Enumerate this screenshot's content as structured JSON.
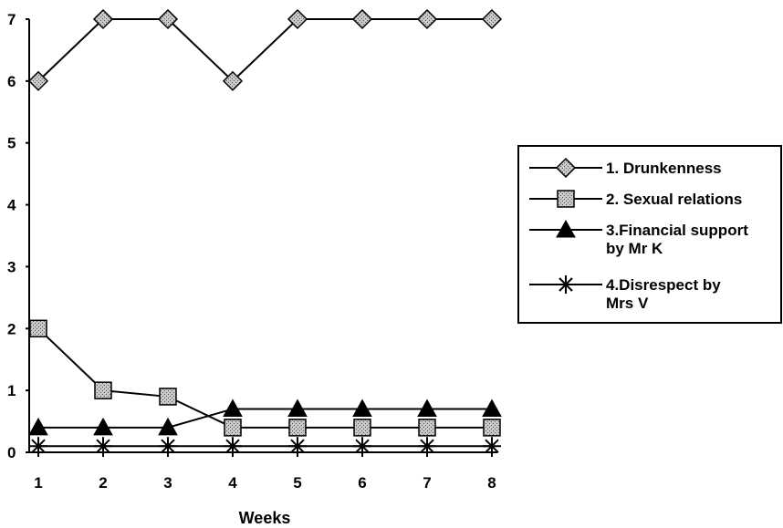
{
  "chart_data": {
    "type": "line",
    "title": "",
    "xlabel": "Weeks",
    "ylabel": "",
    "x": [
      1,
      2,
      3,
      4,
      5,
      6,
      7,
      8
    ],
    "xlim": [
      1,
      8
    ],
    "ylim": [
      0,
      7
    ],
    "yticks": [
      0,
      1,
      2,
      3,
      4,
      5,
      6,
      7
    ],
    "grid": false,
    "legend_position": "right",
    "series": [
      {
        "name": "1.  Drunkenness",
        "legend_lines": [
          "1.  Drunkenness"
        ],
        "marker": "diamond",
        "values": [
          6,
          7,
          7,
          6,
          7,
          7,
          7,
          7
        ]
      },
      {
        "name": "2.  Sexual relations",
        "legend_lines": [
          "2.  Sexual relations"
        ],
        "marker": "square",
        "values": [
          2,
          1,
          0.9,
          0.4,
          0.4,
          0.4,
          0.4,
          0.4
        ]
      },
      {
        "name": "3.Financial support by Mr K",
        "legend_lines": [
          "3.Financial support",
          "by Mr K"
        ],
        "marker": "triangle",
        "values": [
          0.4,
          0.4,
          0.4,
          0.7,
          0.7,
          0.7,
          0.7,
          0.7
        ]
      },
      {
        "name": "4.Disrespect by Mrs V",
        "legend_lines": [
          "4.Disrespect by",
          "Mrs V"
        ],
        "marker": "star",
        "values": [
          0.1,
          0.1,
          0.1,
          0.1,
          0.1,
          0.1,
          0.1,
          0.1
        ]
      }
    ]
  }
}
